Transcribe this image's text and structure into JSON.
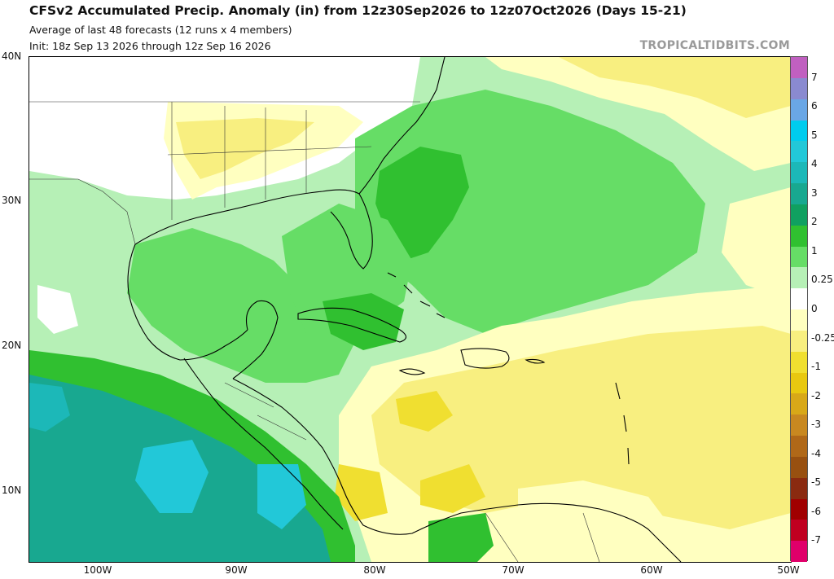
{
  "header": {
    "title": "CFSv2 Accumulated Precip. Anomaly (in) from 12z30Sep2026 to 12z07Oct2026 (Days 15-21)",
    "subtitle1": "Average of last 48 forecasts (12 runs x 4 members)",
    "subtitle2": "Init: 18z Sep 13 2026 through 12z Sep 16 2026",
    "brand": "TROPICALTIDBITS.COM"
  },
  "axes": {
    "lat_labels": [
      "40N",
      "30N",
      "20N",
      "10N"
    ],
    "lon_labels": [
      "100W",
      "90W",
      "80W",
      "70W",
      "60W",
      "50W"
    ]
  },
  "colorbar": {
    "labels": [
      "7",
      "6",
      "5",
      "4",
      "3",
      "2",
      "1",
      "0.25",
      "0",
      "-0.25",
      "-1",
      "-2",
      "-3",
      "-4",
      "-5",
      "-6",
      "-7"
    ],
    "colors": [
      "#c060c0",
      "#8a8ad0",
      "#6aa7e6",
      "#00ccee",
      "#22c8d8",
      "#1cb8b8",
      "#18a890",
      "#10a060",
      "#30c030",
      "#66dd66",
      "#b6f0b6",
      "#ffffff",
      "#ffffc0",
      "#f8ef80",
      "#f0df30",
      "#e8c810",
      "#d8a818",
      "#c88820",
      "#b06818",
      "#985010",
      "#8a2a10",
      "#a00000",
      "#c00020",
      "#e0006a"
    ]
  },
  "map": {
    "extent": {
      "lon": [
        -105,
        -50
      ],
      "lat": [
        5,
        40
      ]
    },
    "features": [
      "Gulf of Mexico",
      "Caribbean Sea",
      "Florida",
      "Cuba",
      "Hispaniola",
      "Central America",
      "South America coast",
      "US state borders"
    ]
  }
}
